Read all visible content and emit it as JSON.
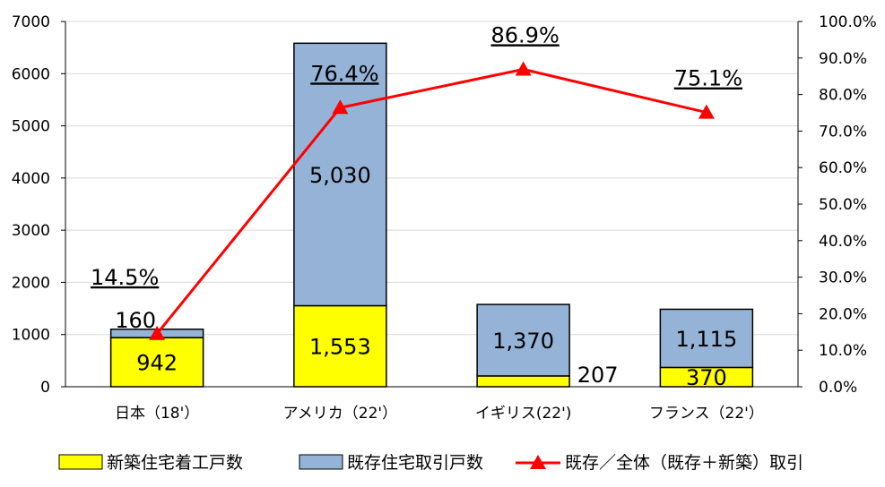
{
  "chart_data": {
    "type": "bar",
    "categories": [
      "日本（18'）",
      "アメリカ（22'）",
      "イギリス(22')",
      "フランス（22'）"
    ],
    "series": [
      {
        "name": "新築住宅着工戸数",
        "kind": "bar",
        "color": "#FFFF00",
        "values": [
          942,
          1553,
          207,
          370
        ],
        "labels": [
          "942",
          "1,553",
          "207",
          "370"
        ]
      },
      {
        "name": "既存住宅取引戸数",
        "kind": "bar",
        "color": "#95B3D7",
        "values": [
          160,
          5030,
          1370,
          1115
        ],
        "labels": [
          "160",
          "5,030",
          "1,370",
          "1,115"
        ]
      },
      {
        "name": "既存／全体（既存＋新築）取引",
        "kind": "line",
        "axis": "right",
        "color": "#FF0000",
        "values": [
          14.5,
          76.4,
          86.9,
          75.1
        ],
        "labels": [
          "14.5%",
          "76.4%",
          "86.9%",
          "75.1%"
        ]
      }
    ],
    "ylim": [
      0,
      7000
    ],
    "y_ticks": [
      "0",
      "1000",
      "2000",
      "3000",
      "4000",
      "5000",
      "6000",
      "7000"
    ],
    "y2lim": [
      0,
      100
    ],
    "y2_ticks": [
      "0.0%",
      "10.0%",
      "20.0%",
      "30.0%",
      "40.0%",
      "50.0%",
      "60.0%",
      "70.0%",
      "80.0%",
      "90.0%",
      "100.0%"
    ],
    "legend_position": "bottom",
    "grid": true
  }
}
